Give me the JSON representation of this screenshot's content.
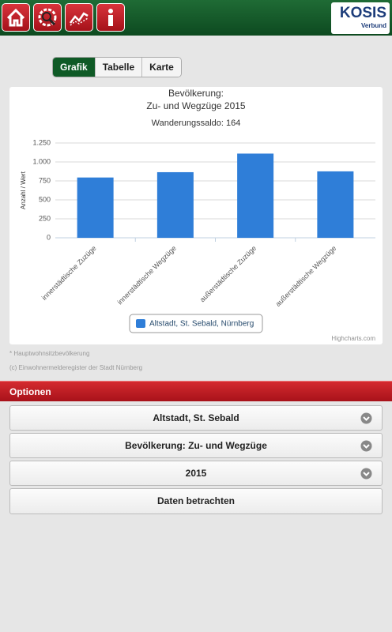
{
  "header": {
    "logo": "KOSIS",
    "logo_sub": "Verbund"
  },
  "tabs": [
    "Grafik",
    "Tabelle",
    "Karte"
  ],
  "chart_data": {
    "type": "bar",
    "title": [
      "Bevölkerung:",
      "Zu- und Wegzüge 2015"
    ],
    "subtitle": "Wanderungssaldo: 164",
    "y_label": "Anzahl / Wert",
    "categories": [
      "innerstädtische Zuzüge",
      "innerstädtische Wegzüge",
      "außerstädtische Zuzüge",
      "außerstädtische Wegzüge"
    ],
    "series": [
      {
        "name": "Altstadt, St. Sebald, Nürnberg",
        "color": "#2f7ed8",
        "values": [
          795,
          865,
          1110,
          876
        ]
      }
    ],
    "ylim": [
      0,
      1250
    ],
    "yticks": [
      0,
      250,
      500,
      750,
      {
        "value": 1000,
        "label": "1.000"
      },
      {
        "value": 1250,
        "label": "1.250"
      }
    ],
    "grid": true,
    "credits": "Highcharts.com"
  },
  "footnotes": [
    "* Hauptwohnsitzbevölkerung",
    "(c) Einwohnermelderegister der Stadt Nürnberg"
  ],
  "options": {
    "title": "Optionen",
    "items": [
      "Altstadt, St. Sebald",
      "Bevölkerung: Zu- und Wegzüge",
      "2015",
      "Daten betrachten"
    ]
  }
}
